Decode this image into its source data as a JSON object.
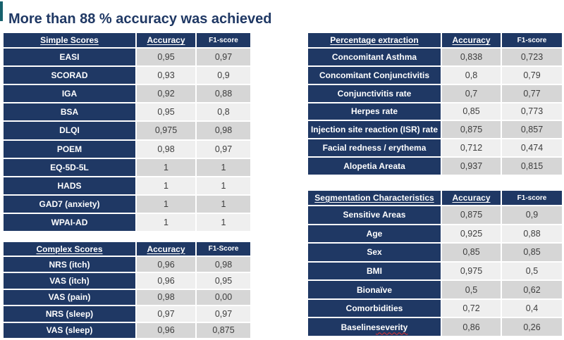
{
  "title": "More than 88 % accuracy was achieved",
  "colors": {
    "navy": "#1f3864",
    "teal_accent": "#17616d",
    "row_band_dark": "#d6d6d6",
    "row_band_light": "#efefef",
    "value_text": "#3d3d3d",
    "spellcheck_red": "#e03131"
  },
  "tables": {
    "simple_scores": {
      "columns": [
        "Simple Scores",
        "Accuracy",
        "F1-score"
      ],
      "rows": [
        [
          "EASI",
          "0,95",
          "0,97"
        ],
        [
          "SCORAD",
          "0,93",
          "0,9"
        ],
        [
          "IGA",
          "0,92",
          "0,88"
        ],
        [
          "BSA",
          "0,95",
          "0,8"
        ],
        [
          "DLQI",
          "0,975",
          "0,98"
        ],
        [
          "POEM",
          "0,98",
          "0,97"
        ],
        [
          "EQ-5D-5L",
          "1",
          "1"
        ],
        [
          "HADS",
          "1",
          "1"
        ],
        [
          "GAD7 (anxiety)",
          "1",
          "1"
        ],
        [
          "WPAI-AD",
          "1",
          "1"
        ]
      ]
    },
    "complex_scores": {
      "columns": [
        "Complex Scores",
        "Accuracy",
        "F1-Score"
      ],
      "rows": [
        [
          "NRS (itch)",
          "0,96",
          "0,98"
        ],
        [
          "VAS (itch)",
          "0,96",
          "0,95"
        ],
        [
          "VAS (pain)",
          "0,98",
          "0,00"
        ],
        [
          "NRS (sleep)",
          "0,97",
          "0,97"
        ],
        [
          "VAS (sleep)",
          "0,96",
          "0,875"
        ]
      ]
    },
    "percentage_extraction": {
      "columns": [
        "Percentage extraction",
        "Accuracy",
        "F1-score"
      ],
      "rows": [
        [
          "Concomitant Asthma",
          "0,838",
          "0,723"
        ],
        [
          "Concomitant Conjunctivitis",
          "0,8",
          "0,79"
        ],
        [
          "Conjunctivitis rate",
          "0,7",
          "0,77"
        ],
        [
          "Herpes rate",
          "0,85",
          "0,773"
        ],
        [
          "Injection site reaction (ISR) rate",
          "0,875",
          "0,857"
        ],
        [
          "Facial redness / erythema",
          "0,712",
          "0,474"
        ],
        [
          "Alopetia Areata",
          "0,937",
          "0,815"
        ]
      ]
    },
    "segmentation_characteristics": {
      "columns": [
        "Segmentation Characteristics",
        "Accuracy",
        "F1-score"
      ],
      "spellcheck_word": "severity",
      "rows": [
        [
          "Sensitive Areas",
          "0,875",
          "0,9"
        ],
        [
          "Age",
          "0,925",
          "0,88"
        ],
        [
          "Sex",
          "0,85",
          "0,85"
        ],
        [
          "BMI",
          "0,975",
          "0,5"
        ],
        [
          "Bionaïve",
          "0,5",
          "0,62"
        ],
        [
          "Comorbidities",
          "0,72",
          "0,4"
        ],
        [
          "Baseline severity",
          "0,86",
          "0,26"
        ]
      ]
    }
  }
}
